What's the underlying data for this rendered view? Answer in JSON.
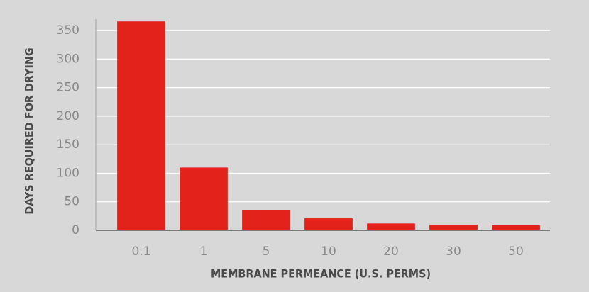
{
  "chart_data": {
    "type": "bar",
    "x_label": "MEMBRANE PERMEANCE (U.S. PERMS)",
    "y_label": "DAYS REQUIRED FOR DRYING",
    "categories": [
      "0.1",
      "1",
      "5",
      "10",
      "20",
      "30",
      "50"
    ],
    "values": [
      366,
      110,
      36,
      21,
      12,
      10,
      9
    ],
    "color": "#e3231b",
    "ylim": [
      0,
      370
    ],
    "yticks": [
      0,
      50,
      100,
      150,
      200,
      250,
      300,
      350
    ],
    "grid": true
  }
}
